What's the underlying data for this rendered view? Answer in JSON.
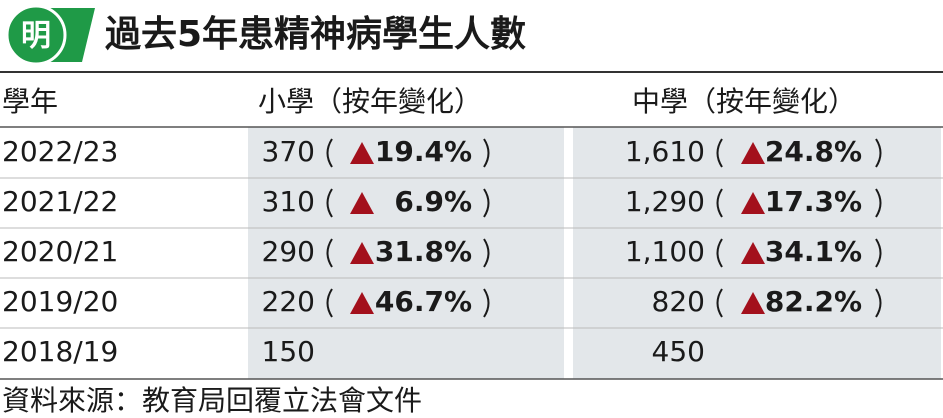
{
  "logo": "明",
  "title": "過去5年患精神病學生人數",
  "table": {
    "header": [
      "學年",
      "小學（按年變化）",
      "中學（按年變化）"
    ],
    "rows": [
      {
        "year": "2022/23",
        "primary": "370",
        "primary_change": "19.4%",
        "secondary": "1,610",
        "secondary_change": "24.8%"
      },
      {
        "year": "2021/22",
        "primary": "310",
        "primary_change": "6.9%",
        "secondary": "1,290",
        "secondary_change": "17.3%"
      },
      {
        "year": "2020/21",
        "primary": "290",
        "primary_change": "31.8%",
        "secondary": "1,100",
        "secondary_change": "34.1%"
      },
      {
        "year": "2019/20",
        "primary": "220",
        "primary_change": "46.7%",
        "secondary": "820",
        "secondary_change": "82.2%"
      },
      {
        "year": "2018/19",
        "primary": "150",
        "secondary": "450"
      }
    ]
  },
  "source": "資料來源：教育局回覆立法會文件"
}
